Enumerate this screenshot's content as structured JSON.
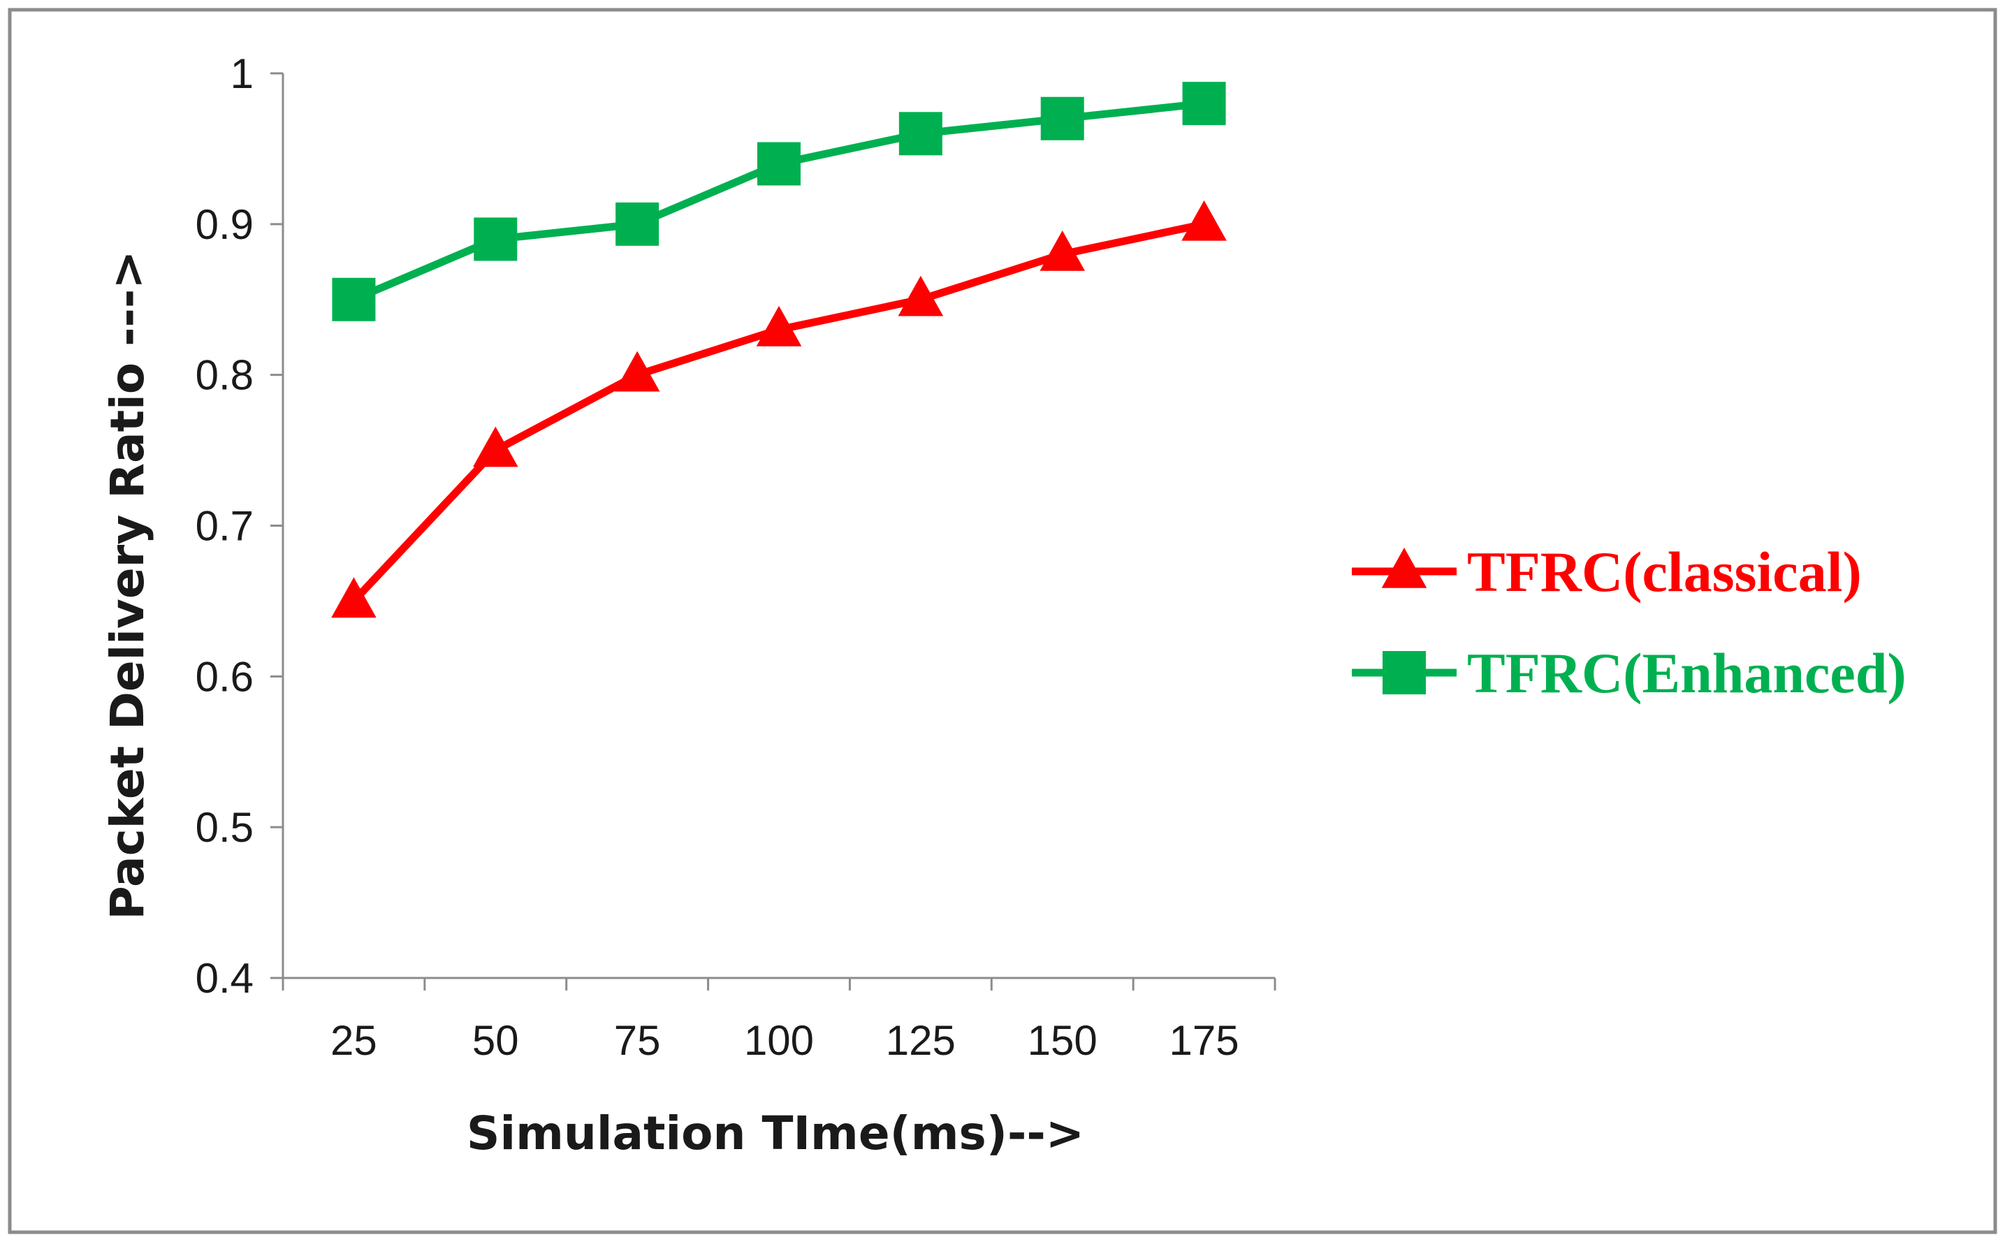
{
  "chart_data": {
    "type": "line",
    "title": "",
    "xlabel": "Simulation TIme(ms)-->",
    "ylabel": "Packet Delivery Ratio --->",
    "categories": [
      "25",
      "50",
      "75",
      "100",
      "125",
      "150",
      "175"
    ],
    "ylim": [
      0.4,
      1
    ],
    "yticks": [
      0.4,
      0.5,
      0.6,
      0.7,
      0.8,
      0.9,
      1
    ],
    "ytick_labels": [
      "0.4",
      "0.5",
      "0.6",
      "0.7",
      "0.8",
      "0.9",
      "1"
    ],
    "grid": false,
    "legend_position": "right",
    "series": [
      {
        "name": "TFRC(classical)",
        "marker": "triangle",
        "color": "#ff0000",
        "values": [
          0.65,
          0.75,
          0.8,
          0.83,
          0.85,
          0.88,
          0.9
        ]
      },
      {
        "name": "TFRC(Enhanced)",
        "marker": "square",
        "color": "#00b050",
        "values": [
          0.85,
          0.89,
          0.9,
          0.94,
          0.96,
          0.97,
          0.98
        ]
      }
    ]
  }
}
